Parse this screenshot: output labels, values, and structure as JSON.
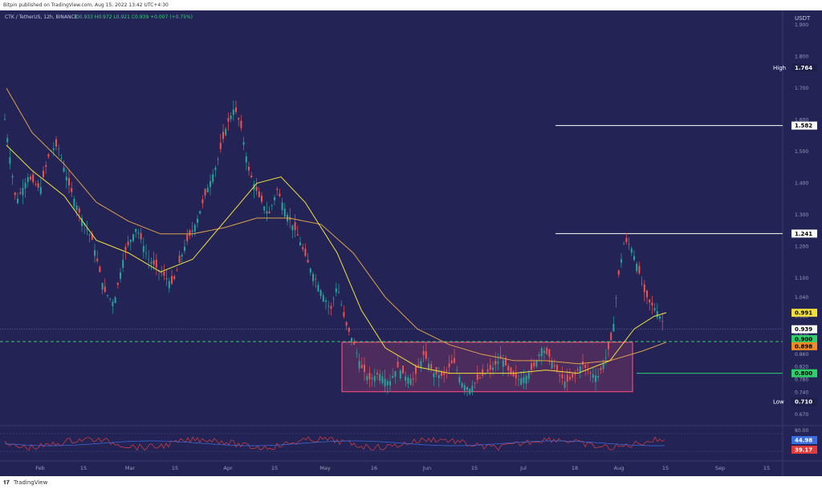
{
  "header": {
    "published": "Bitpin published on TradingView.com, Aug 15, 2022 13:42 UTC+4:30"
  },
  "symbol_bar": {
    "symbol": "CTK / TetherUS, 12h, BINANCE",
    "ohlc": "O0.933  H0.972  L0.921  C0.939  +0.007 (+0.75%)"
  },
  "axis": {
    "currency": "USDT",
    "ticks": [
      "1.900",
      "1.800",
      "1.700",
      "1.600",
      "1.500",
      "1.400",
      "1.300",
      "1.200",
      "1.100",
      "1.040",
      "0.980",
      "0.920",
      "0.860",
      "0.820",
      "0.780",
      "0.740",
      "0.670"
    ]
  },
  "price_tags": [
    {
      "label": "High",
      "value": "1.764",
      "color": "#1e1f4a",
      "text": "#ffffff"
    },
    {
      "label": "",
      "value": "1.582",
      "color": "#ffffff",
      "text": "#000000"
    },
    {
      "label": "",
      "value": "1.241",
      "color": "#ffffff",
      "text": "#000000"
    },
    {
      "label": "",
      "value": "0.991",
      "color": "#f2e13c",
      "text": "#000000"
    },
    {
      "label": "",
      "value": "0.939",
      "color": "#ffffff",
      "text": "#000000"
    },
    {
      "label": "",
      "value": "0.900",
      "color": "#2fd06a",
      "text": "#000000"
    },
    {
      "label": "",
      "value": "0.898",
      "color": "#f28c28",
      "text": "#000000"
    },
    {
      "label": "",
      "value": "0.800",
      "color": "#2fd06a",
      "text": "#000000"
    },
    {
      "label": "Low",
      "value": "0.710",
      "color": "#1e1f4a",
      "text": "#ffffff"
    }
  ],
  "rsi_axis": {
    "top": "80.00",
    "tags": [
      {
        "value": "44.98",
        "color": "#3b6fe0"
      },
      {
        "value": "39.17",
        "color": "#e03b3b"
      }
    ]
  },
  "time_axis": [
    "Feb",
    "15",
    "Mar",
    "15",
    "Apr",
    "15",
    "May",
    "16",
    "Jun",
    "15",
    "Jul",
    "18",
    "Aug",
    "15",
    "Sep",
    "15"
  ],
  "footer": {
    "brand": "TradingView"
  },
  "colors": {
    "background": "#232455",
    "up": "#26a69a",
    "down": "#ef5350",
    "box": "#e0457a"
  }
}
